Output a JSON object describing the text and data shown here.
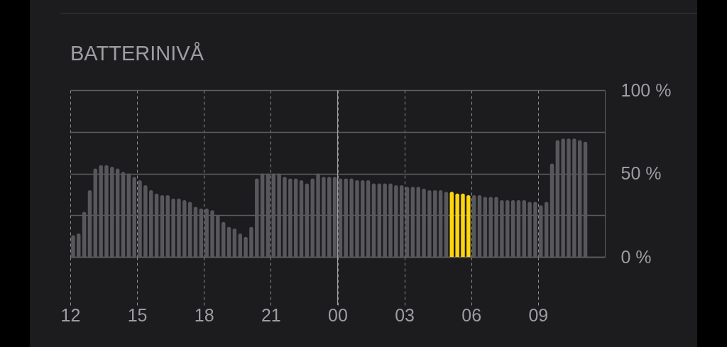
{
  "chart_data": {
    "type": "bar",
    "title": "BATTERINIVÅ",
    "x": [
      "--01-01T12:00",
      "--01-01T12:15",
      "--01-01T12:30",
      "--01-01T12:45",
      "--01-01T13:00",
      "--01-01T13:15",
      "--01-01T13:30",
      "--01-01T13:45",
      "--01-01T14:00",
      "--01-01T14:15",
      "--01-01T14:30",
      "--01-01T14:45",
      "--01-01T15:00",
      "--01-01T15:15",
      "--01-01T15:30",
      "--01-01T15:45",
      "--01-01T16:00",
      "--01-01T16:15",
      "--01-01T16:30",
      "--01-01T16:45",
      "--01-01T17:00",
      "--01-01T17:15",
      "--01-01T17:30",
      "--01-01T17:45",
      "--01-01T18:00",
      "--01-01T18:15",
      "--01-01T18:30",
      "--01-01T18:45",
      "--01-01T19:00",
      "--01-01T19:15",
      "--01-01T19:30",
      "--01-01T19:45",
      "--01-01T20:00",
      "--01-01T20:15",
      "--01-01T20:30",
      "--01-01T20:45",
      "--01-01T21:00",
      "--01-01T21:15",
      "--01-01T21:30",
      "--01-01T21:45",
      "--01-01T22:00",
      "--01-01T22:15",
      "--01-01T22:30",
      "--01-01T22:45",
      "--01-01T23:00",
      "--01-01T23:15",
      "--01-01T23:30",
      "--01-01T23:45",
      "--01-02T00:00",
      "--01-02T00:15",
      "--01-02T00:30",
      "--01-02T00:45",
      "--01-02T01:00",
      "--01-02T01:15",
      "--01-02T01:30",
      "--01-02T01:45",
      "--01-02T02:00",
      "--01-02T02:15",
      "--01-02T02:30",
      "--01-02T02:45",
      "--01-02T03:00",
      "--01-02T03:15",
      "--01-02T03:30",
      "--01-02T03:45",
      "--01-02T04:00",
      "--01-02T04:15",
      "--01-02T04:30",
      "--01-02T04:45",
      "--01-02T05:00",
      "--01-02T05:15",
      "--01-02T05:30",
      "--01-02T05:45",
      "--01-02T06:00",
      "--01-02T06:15",
      "--01-02T06:30",
      "--01-02T06:45",
      "--01-02T07:00",
      "--01-02T07:15",
      "--01-02T07:30",
      "--01-02T07:45",
      "--01-02T08:00",
      "--01-02T08:15",
      "--01-02T08:30",
      "--01-02T08:45",
      "--01-02T09:00",
      "--01-02T09:15",
      "--01-02T09:30",
      "--01-02T09:45",
      "--01-02T10:00",
      "--01-02T10:15",
      "--01-02T10:30",
      "--01-02T10:45",
      "--01-02T11:00"
    ],
    "values": [
      13,
      14,
      27,
      40,
      53,
      55,
      55,
      54,
      53,
      51,
      50,
      48,
      46,
      43,
      40,
      38,
      37,
      37,
      35,
      35,
      34,
      33,
      30,
      29,
      29,
      28,
      25,
      21,
      18,
      17,
      14,
      12,
      18,
      47,
      50,
      50,
      50,
      50,
      48,
      47,
      47,
      46,
      44,
      47,
      50,
      48,
      48,
      48,
      47,
      47,
      47,
      46,
      46,
      46,
      44,
      44,
      44,
      44,
      43,
      43,
      42,
      42,
      42,
      41,
      40,
      40,
      40,
      39,
      39,
      38,
      38,
      37,
      37,
      37,
      36,
      36,
      36,
      34,
      34,
      34,
      34,
      34,
      33,
      33,
      31,
      33,
      56,
      70,
      71,
      71,
      71,
      70,
      69
    ],
    "colors": [
      "#58585c",
      "#58585c",
      "#58585c",
      "#58585c",
      "#58585c",
      "#58585c",
      "#58585c",
      "#58585c",
      "#58585c",
      "#58585c",
      "#58585c",
      "#58585c",
      "#58585c",
      "#58585c",
      "#58585c",
      "#58585c",
      "#58585c",
      "#58585c",
      "#58585c",
      "#58585c",
      "#58585c",
      "#58585c",
      "#58585c",
      "#58585c",
      "#58585c",
      "#58585c",
      "#58585c",
      "#58585c",
      "#58585c",
      "#58585c",
      "#58585c",
      "#58585c",
      "#58585c",
      "#58585c",
      "#58585c",
      "#58585c",
      "#58585c",
      "#58585c",
      "#58585c",
      "#58585c",
      "#58585c",
      "#58585c",
      "#58585c",
      "#58585c",
      "#58585c",
      "#58585c",
      "#58585c",
      "#58585c",
      "#58585c",
      "#58585c",
      "#58585c",
      "#58585c",
      "#58585c",
      "#58585c",
      "#58585c",
      "#58585c",
      "#58585c",
      "#58585c",
      "#58585c",
      "#58585c",
      "#58585c",
      "#58585c",
      "#58585c",
      "#58585c",
      "#58585c",
      "#58585c",
      "#58585c",
      "#58585c",
      "#ffd60a",
      "#ffd60a",
      "#ffd60a",
      "#ffd60a",
      "#58585c",
      "#58585c",
      "#58585c",
      "#58585c",
      "#58585c",
      "#58585c",
      "#58585c",
      "#58585c",
      "#58585c",
      "#58585c",
      "#58585c",
      "#58585c",
      "#58585c",
      "#58585c",
      "#58585c",
      "#58585c",
      "#58585c",
      "#58585c",
      "#58585c",
      "#58585c",
      "#58585c"
    ],
    "xlim": [
      "--01-01T12:00",
      "--01-02T12:00"
    ],
    "xticks": [
      {
        "value": "--01-01T12:00",
        "label": "12"
      },
      {
        "value": "--01-01T15:00",
        "label": "15"
      },
      {
        "value": "--01-01T18:00",
        "label": "18"
      },
      {
        "value": "--01-01T21:00",
        "label": "21"
      },
      {
        "value": "--01-02T00:00",
        "label": "00"
      },
      {
        "value": "--01-02T03:00",
        "label": "03"
      },
      {
        "value": "--01-02T06:00",
        "label": "06"
      },
      {
        "value": "--01-02T09:00",
        "label": "09"
      }
    ],
    "ylim": [
      0,
      100
    ],
    "yticks": [
      {
        "value": 0,
        "label": "0 %"
      },
      {
        "value": 25,
        "label": null
      },
      {
        "value": 50,
        "label": "50 %"
      },
      {
        "value": 75,
        "label": null
      },
      {
        "value": 100,
        "label": "100 %"
      }
    ],
    "grid": true,
    "ref_lines": [
      {
        "axis": "x",
        "value": "--01-02T00:00",
        "line_style": "solid"
      }
    ]
  }
}
